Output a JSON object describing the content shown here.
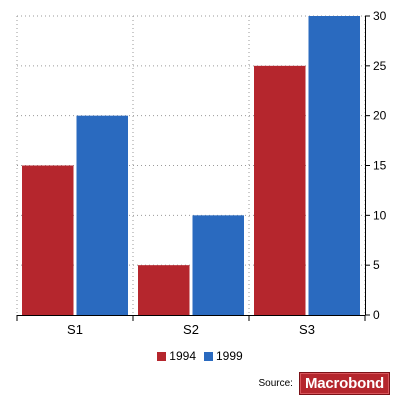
{
  "chart_data": {
    "type": "bar",
    "categories": [
      "S1",
      "S2",
      "S3"
    ],
    "series": [
      {
        "name": "1994",
        "values": [
          15,
          5,
          25
        ],
        "color": "#b5262d"
      },
      {
        "name": "1999",
        "values": [
          20,
          10,
          30
        ],
        "color": "#2a6abf"
      }
    ],
    "ylim": [
      0,
      30
    ],
    "yticks": [
      "0",
      "5",
      "10",
      "15",
      "20",
      "25",
      "30"
    ],
    "y_axis_side": "right",
    "grid": true,
    "legend_position": "bottom"
  },
  "source": {
    "label": "Source:",
    "logo_text": "Macrobond"
  }
}
